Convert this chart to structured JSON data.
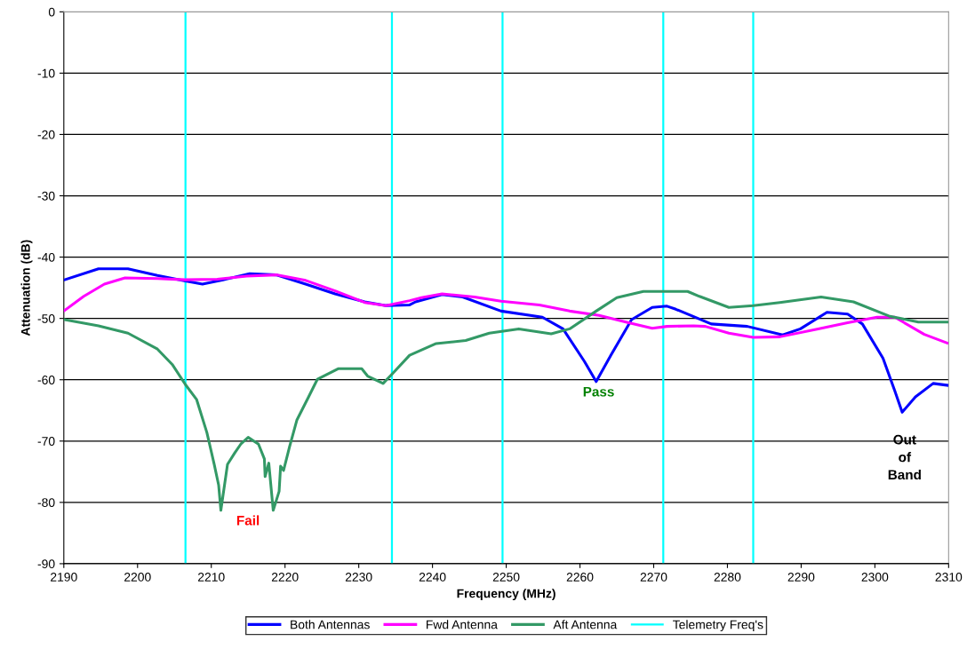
{
  "chart_data": {
    "type": "line",
    "xlabel": "Frequency (MHz)",
    "ylabel": "Attenuation (dB)",
    "xlim": [
      2190,
      2310
    ],
    "xticks": [
      2190,
      2200,
      2210,
      2220,
      2230,
      2240,
      2250,
      2260,
      2270,
      2280,
      2290,
      2300,
      2310
    ],
    "ylim": [
      -90,
      0
    ],
    "yticks": [
      -90,
      -80,
      -70,
      -60,
      -50,
      -40,
      -30,
      -20,
      -10,
      0
    ],
    "grid": "y",
    "legend": "bottom",
    "marker": "none",
    "line_style": "solid",
    "series": [
      {
        "name": "Both Antennas",
        "color": "#0000ff",
        "x": [
          2190.1,
          2194.7,
          2198.7,
          2202.7,
          2206.5,
          2208.8,
          2211.6,
          2215.2,
          2218.8,
          2222.8,
          2226.8,
          2230.8,
          2233.7,
          2236.9,
          2237.7,
          2241.3,
          2244.1,
          2249.3,
          2254.9,
          2257.7,
          2260.6,
          2262.2,
          2264.2,
          2267.0,
          2269.8,
          2271.8,
          2273.0,
          2277.8,
          2282.7,
          2287.5,
          2289.9,
          2293.5,
          2296.3,
          2298.3,
          2301.1,
          2302.7,
          2303.7,
          2305.5,
          2307.9,
          2309.8
        ],
        "values": [
          -43.7,
          -41.9,
          -41.9,
          -43.0,
          -43.9,
          -44.4,
          -43.7,
          -42.7,
          -42.9,
          -44.4,
          -46.0,
          -47.3,
          -47.9,
          -47.8,
          -47.3,
          -46.1,
          -46.5,
          -48.8,
          -49.8,
          -51.7,
          -57.0,
          -60.3,
          -56.0,
          -50.2,
          -48.2,
          -48.0,
          -48.5,
          -50.9,
          -51.3,
          -52.7,
          -51.7,
          -49.0,
          -49.3,
          -50.9,
          -56.5,
          -61.8,
          -65.3,
          -62.8,
          -60.6,
          -60.9
        ]
      },
      {
        "name": "Fwd Antenna",
        "color": "#ff00ff",
        "x": [
          2190.1,
          2192.7,
          2195.5,
          2198.3,
          2202.7,
          2206.5,
          2210.8,
          2214.8,
          2218.8,
          2222.8,
          2226.8,
          2230.8,
          2233.7,
          2236.9,
          2238.5,
          2241.3,
          2245.7,
          2249.3,
          2254.5,
          2258.6,
          2262.6,
          2266.6,
          2269.8,
          2271.8,
          2275.4,
          2277.0,
          2280.2,
          2283.5,
          2287.1,
          2292.3,
          2296.3,
          2300.3,
          2302.7,
          2306.7,
          2309.8
        ],
        "values": [
          -48.7,
          -46.4,
          -44.4,
          -43.4,
          -43.5,
          -43.7,
          -43.6,
          -43.1,
          -42.9,
          -43.8,
          -45.5,
          -47.4,
          -47.9,
          -47.1,
          -46.6,
          -46.0,
          -46.5,
          -47.2,
          -47.8,
          -48.8,
          -49.5,
          -50.7,
          -51.6,
          -51.3,
          -51.2,
          -51.3,
          -52.4,
          -53.1,
          -53.0,
          -51.7,
          -50.7,
          -49.8,
          -49.8,
          -52.6,
          -54.0
        ]
      },
      {
        "name": "Aft Antenna",
        "color": "#339966",
        "x": [
          2190.1,
          2194.7,
          2198.7,
          2202.7,
          2204.7,
          2206.5,
          2208.0,
          2209.4,
          2210.4,
          2211.0,
          2211.3,
          2212.2,
          2213.2,
          2214.0,
          2215.0,
          2216.4,
          2217.2,
          2217.3,
          2217.8,
          2218.4,
          2219.2,
          2219.4,
          2219.8,
          2220.6,
          2221.6,
          2223.2,
          2224.4,
          2227.2,
          2230.4,
          2231.2,
          2233.3,
          2234.5,
          2236.9,
          2240.5,
          2244.5,
          2247.7,
          2251.7,
          2256.1,
          2258.6,
          2262.2,
          2265.0,
          2268.6,
          2274.6,
          2276.2,
          2280.2,
          2283.5,
          2287.1,
          2292.7,
          2297.1,
          2301.9,
          2305.9,
          2309.8
        ],
        "values": [
          -50.2,
          -51.2,
          -52.4,
          -55.0,
          -57.5,
          -60.8,
          -63.2,
          -68.6,
          -73.8,
          -77.2,
          -81.3,
          -73.8,
          -71.9,
          -70.5,
          -69.4,
          -70.5,
          -72.9,
          -75.8,
          -73.6,
          -81.3,
          -78.2,
          -74.1,
          -74.8,
          -71.0,
          -66.6,
          -62.8,
          -59.9,
          -58.2,
          -58.2,
          -59.4,
          -60.6,
          -59.1,
          -56.0,
          -54.1,
          -53.6,
          -52.4,
          -51.7,
          -52.5,
          -51.7,
          -48.8,
          -46.6,
          -45.6,
          -45.6,
          -46.4,
          -48.2,
          -47.9,
          -47.4,
          -46.5,
          -47.3,
          -49.6,
          -50.6,
          -50.6
        ]
      }
    ],
    "ref_lines": [
      {
        "axis": "x",
        "value": 2206.5,
        "label": "Telemetry Freq's",
        "color": "#00ffff"
      },
      {
        "axis": "x",
        "value": 2234.5,
        "color": "#00ffff"
      },
      {
        "axis": "x",
        "value": 2249.5,
        "color": "#00ffff"
      },
      {
        "axis": "x",
        "value": 2271.3,
        "color": "#00ffff"
      },
      {
        "axis": "x",
        "value": 2283.5,
        "color": "#00ffff"
      }
    ],
    "annotations": [
      {
        "text": "Fail",
        "x": 2211.3,
        "y": -81.3
      },
      {
        "text": "Pass",
        "x": 2262.2,
        "y": -60.3
      },
      {
        "text": "Out\nof\nBand",
        "x": 2303.7,
        "y": -65.3
      }
    ]
  }
}
